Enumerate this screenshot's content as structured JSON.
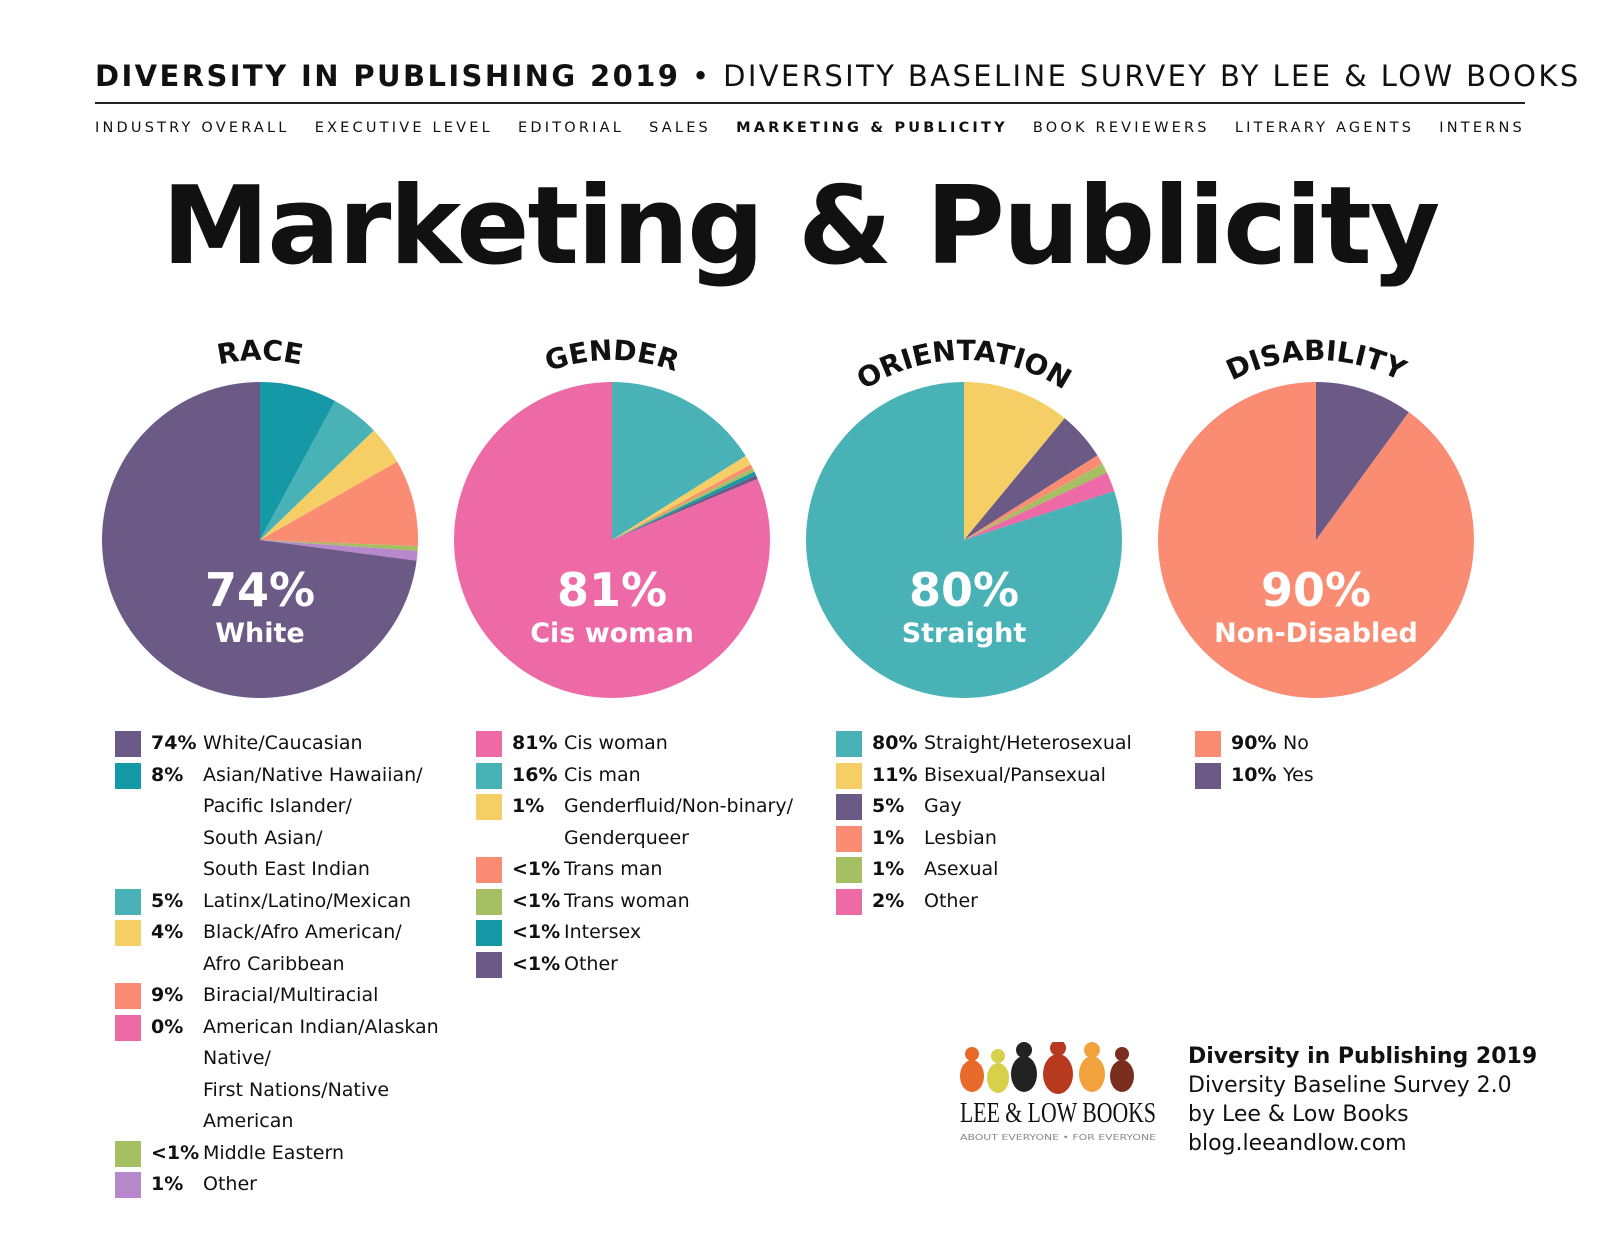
{
  "header": {
    "title_bold": "DIVERSITY IN PUBLISHING 2019",
    "separator": " • ",
    "title_light": "DIVERSITY BASELINE SURVEY BY LEE & LOW BOOKS"
  },
  "nav": {
    "tabs": [
      {
        "label": "INDUSTRY OVERALL",
        "active": false
      },
      {
        "label": "EXECUTIVE LEVEL",
        "active": false
      },
      {
        "label": "EDITORIAL",
        "active": false
      },
      {
        "label": "SALES",
        "active": false
      },
      {
        "label": "MARKETING & PUBLICITY",
        "active": true
      },
      {
        "label": "BOOK REVIEWERS",
        "active": false
      },
      {
        "label": "LITERARY AGENTS",
        "active": false
      },
      {
        "label": "INTERNS",
        "active": false
      }
    ]
  },
  "page_title": "Marketing & Publicity",
  "chart_data": [
    {
      "type": "pie",
      "title": "RACE",
      "center_value": "74%",
      "center_label": "White",
      "slices": [
        {
          "label": "White/Caucasian",
          "display": "74%",
          "value": 74,
          "color": "#6B5A86"
        },
        {
          "label": "Asian/Native Hawaiian/\nPacific Islander/\nSouth Asian/\nSouth East Indian",
          "display": "8%",
          "value": 8,
          "color": "#1699A6"
        },
        {
          "label": "Latinx/Latino/Mexican",
          "display": "5%",
          "value": 5,
          "color": "#49B2B6"
        },
        {
          "label": "Black/Afro American/\nAfro Caribbean",
          "display": "4%",
          "value": 4,
          "color": "#F5CF66"
        },
        {
          "label": "Biracial/Multiracial",
          "display": "9%",
          "value": 9,
          "color": "#F98C72"
        },
        {
          "label": "American Indian/Alaskan Native/\nFirst Nations/Native American",
          "display": "0%",
          "value": 0,
          "color": "#EE6AA7"
        },
        {
          "label": "Middle Eastern",
          "display": "<1%",
          "value": 0.5,
          "color": "#A6BF62"
        },
        {
          "label": "Other",
          "display": "1%",
          "value": 1,
          "color": "#B888CC"
        }
      ]
    },
    {
      "type": "pie",
      "title": "GENDER",
      "center_value": "81%",
      "center_label": "Cis woman",
      "slices": [
        {
          "label": "Cis woman",
          "display": "81%",
          "value": 81,
          "color": "#EE6AA7"
        },
        {
          "label": "Cis man",
          "display": "16%",
          "value": 16,
          "color": "#49B2B6"
        },
        {
          "label": "Genderfluid/Non-binary/\nGenderqueer",
          "display": "1%",
          "value": 1,
          "color": "#F5CF66"
        },
        {
          "label": "Trans man",
          "display": "<1%",
          "value": 0.4,
          "color": "#F98C72"
        },
        {
          "label": "Trans woman",
          "display": "<1%",
          "value": 0.4,
          "color": "#A6BF62"
        },
        {
          "label": "Intersex",
          "display": "<1%",
          "value": 0.4,
          "color": "#1699A6"
        },
        {
          "label": "Other",
          "display": "<1%",
          "value": 0.4,
          "color": "#6B5A86"
        }
      ]
    },
    {
      "type": "pie",
      "title": "ORIENTATION",
      "center_value": "80%",
      "center_label": "Straight",
      "slices": [
        {
          "label": "Straight/Heterosexual",
          "display": "80%",
          "value": 80,
          "color": "#49B2B6"
        },
        {
          "label": "Bisexual/Pansexual",
          "display": "11%",
          "value": 11,
          "color": "#F5CF66"
        },
        {
          "label": "Gay",
          "display": "5%",
          "value": 5,
          "color": "#6B5A86"
        },
        {
          "label": "Lesbian",
          "display": "1%",
          "value": 1,
          "color": "#F98C72"
        },
        {
          "label": "Asexual",
          "display": "1%",
          "value": 1,
          "color": "#A6BF62"
        },
        {
          "label": "Other",
          "display": "2%",
          "value": 2,
          "color": "#EE6AA7"
        }
      ]
    },
    {
      "type": "pie",
      "title": "DISABILITY",
      "center_value": "90%",
      "center_label": "Non-Disabled",
      "slices": [
        {
          "label": "No",
          "display": "90%",
          "value": 90,
          "color": "#F98C72"
        },
        {
          "label": "Yes",
          "display": "10%",
          "value": 10,
          "color": "#6B5A86"
        }
      ]
    }
  ],
  "footer": {
    "logo_text": "LEE & LOW BOOKS",
    "logo_tagline": "ABOUT EVERYONE • FOR EVERYONE",
    "title": "Diversity in Publishing 2019",
    "line2": "Diversity Baseline Survey 2.0",
    "line3": "by Lee & Low Books",
    "line4": "blog.leeandlow.com"
  }
}
